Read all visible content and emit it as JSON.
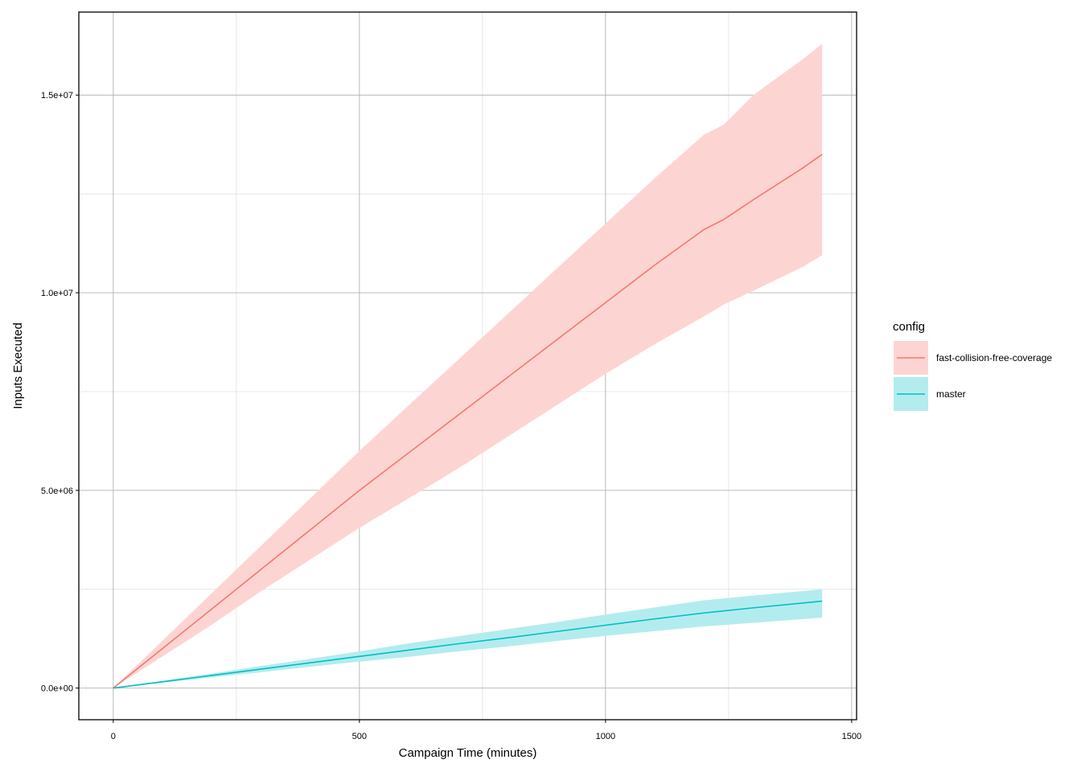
{
  "chart_data": {
    "type": "line",
    "title": "",
    "xlabel": "Campaign Time (minutes)",
    "ylabel": "Inputs Executed",
    "xlim": [
      -70,
      1510
    ],
    "ylim": [
      -800000,
      17100000
    ],
    "grid": true,
    "legend": {
      "title": "config",
      "position": "right"
    },
    "x_ticks": [
      {
        "value": 0,
        "label": "0"
      },
      {
        "value": 500,
        "label": "500"
      },
      {
        "value": 1000,
        "label": "1000"
      },
      {
        "value": 1500,
        "label": "1500"
      }
    ],
    "y_ticks": [
      {
        "value": 0,
        "label": "0.0e+00"
      },
      {
        "value": 5000000,
        "label": "5.0e+06"
      },
      {
        "value": 10000000,
        "label": "1.0e+07"
      },
      {
        "value": 15000000,
        "label": "1.5e+07"
      }
    ],
    "x_minor": [
      250,
      750,
      1250
    ],
    "y_minor": [
      2500000,
      7500000,
      12500000
    ],
    "series": [
      {
        "name": "fast-collision-free-coverage",
        "color": "#F8766D",
        "band_color": "#FCD5D3",
        "x": [
          0,
          100,
          200,
          300,
          400,
          500,
          600,
          700,
          800,
          900,
          1000,
          1100,
          1200,
          1240,
          1300,
          1400,
          1440
        ],
        "y": [
          0,
          1000000,
          2000000,
          3000000,
          4000000,
          5000000,
          5950000,
          6900000,
          7850000,
          8800000,
          9750000,
          10700000,
          11600000,
          11850000,
          12350000,
          13150000,
          13500000
        ],
        "lower": [
          0,
          800000,
          1600000,
          2450000,
          3250000,
          4050000,
          4800000,
          5550000,
          6350000,
          7150000,
          7950000,
          8700000,
          9400000,
          9700000,
          10050000,
          10650000,
          10950000
        ],
        "upper": [
          0,
          1200000,
          2400000,
          3600000,
          4800000,
          6000000,
          7150000,
          8300000,
          9450000,
          10600000,
          11750000,
          12900000,
          14000000,
          14250000,
          15000000,
          15900000,
          16300000
        ]
      },
      {
        "name": "master",
        "color": "#00BFC4",
        "band_color": "#B3ECEE",
        "x": [
          0,
          100,
          200,
          300,
          400,
          500,
          600,
          700,
          800,
          900,
          1000,
          1100,
          1200,
          1300,
          1440
        ],
        "y": [
          0,
          160000,
          320000,
          480000,
          640000,
          800000,
          960000,
          1120000,
          1270000,
          1430000,
          1590000,
          1750000,
          1900000,
          2030000,
          2200000
        ],
        "lower": [
          0,
          135000,
          270000,
          400000,
          540000,
          670000,
          790000,
          930000,
          1050000,
          1190000,
          1320000,
          1440000,
          1560000,
          1650000,
          1780000
        ],
        "upper": [
          0,
          185000,
          370000,
          560000,
          740000,
          930000,
          1130000,
          1310000,
          1490000,
          1670000,
          1860000,
          2040000,
          2220000,
          2340000,
          2500000
        ]
      }
    ]
  }
}
